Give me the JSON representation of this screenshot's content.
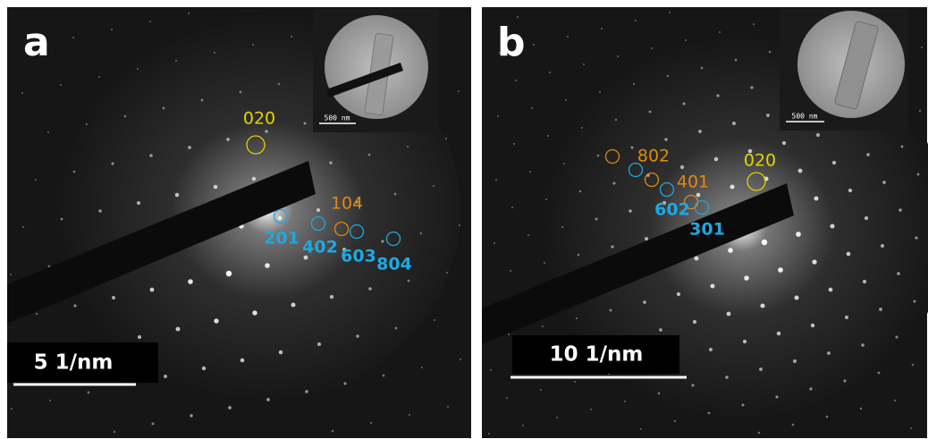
{
  "panels": [
    {
      "label": "a",
      "scale_bar": "5 1/nm",
      "inset_scale": "500 nm",
      "spots": [
        {
          "label": "020"
        },
        {
          "label": "104"
        },
        {
          "label": "201"
        },
        {
          "label": "402"
        },
        {
          "label": "603"
        },
        {
          "label": "804"
        }
      ]
    },
    {
      "label": "b",
      "scale_bar": "10 1/nm",
      "inset_scale": "500 nm",
      "spots": [
        {
          "label": "802"
        },
        {
          "label": "401"
        },
        {
          "label": "020"
        },
        {
          "label": "602"
        },
        {
          "label": "301"
        }
      ]
    }
  ]
}
